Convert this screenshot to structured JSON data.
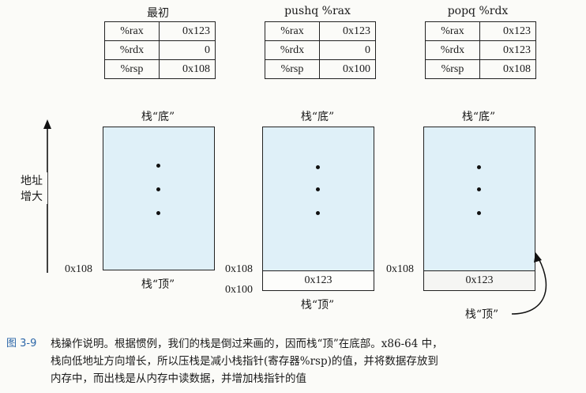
{
  "panels": [
    {
      "heading": "最初",
      "registers": [
        {
          "name": "%rax",
          "value": "0x123"
        },
        {
          "name": "%rdx",
          "value": "0"
        },
        {
          "name": "%rsp",
          "value": "0x108"
        }
      ],
      "stack_bottom_label": "栈“底”",
      "stack_top_label": "栈“顶”",
      "addresses": [
        "0x108"
      ],
      "cells": []
    },
    {
      "heading": "pushq %rax",
      "registers": [
        {
          "name": "%rax",
          "value": "0x123"
        },
        {
          "name": "%rdx",
          "value": "0"
        },
        {
          "name": "%rsp",
          "value": "0x100"
        }
      ],
      "stack_bottom_label": "栈“底”",
      "stack_top_label": "栈“顶”",
      "addresses": [
        "0x108",
        "0x100"
      ],
      "cells": [
        "0x123"
      ]
    },
    {
      "heading": "popq %rdx",
      "registers": [
        {
          "name": "%rax",
          "value": "0x123"
        },
        {
          "name": "%rdx",
          "value": "0x123"
        },
        {
          "name": "%rsp",
          "value": "0x108"
        }
      ],
      "stack_bottom_label": "栈“底”",
      "stack_top_label": "栈“顶”",
      "addresses": [
        "0x108"
      ],
      "cells": [
        "0x123"
      ]
    }
  ],
  "axis_label_line1": "地址",
  "axis_label_line2": "增大",
  "caption": {
    "figure_number": "图 3-9",
    "line1": "栈操作说明。根据惯例，我们的栈是倒过来画的，因而栈“顶”在底部。x86-64 中，",
    "line2": "栈向低地址方向增长，所以压栈是减小栈指针(寄存器%rsp)的值，并将数据存放到",
    "line3": "内存中，而出栈是从内存中读数据，并增加栈指针的值"
  }
}
